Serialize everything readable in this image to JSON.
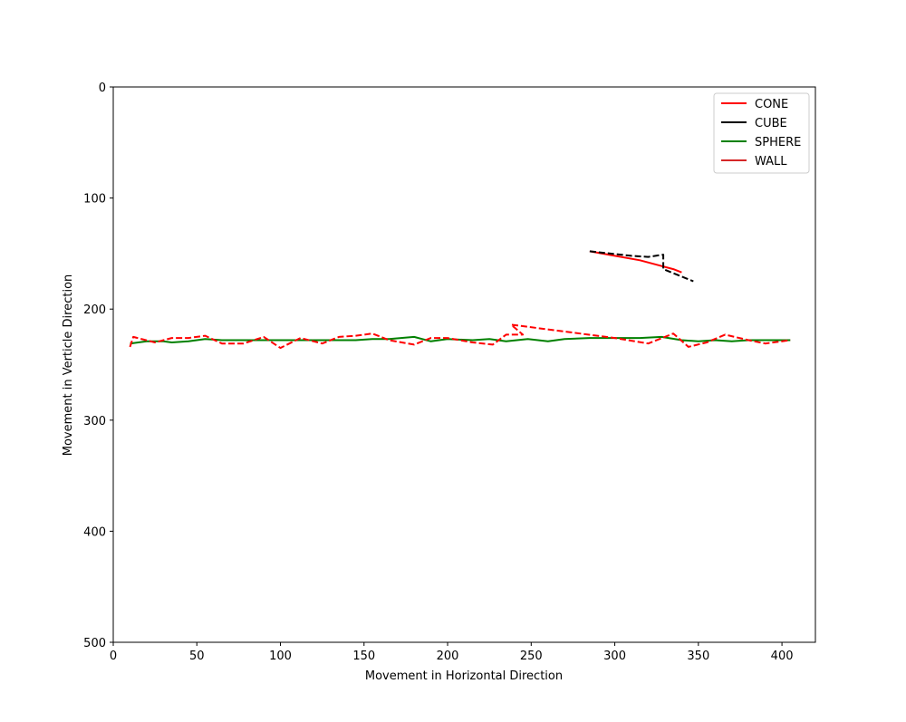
{
  "chart_data": {
    "type": "line",
    "xlabel": "Movement in Horizontal Direction",
    "ylabel": "Movement in Verticle Direction",
    "xlim": [
      0,
      420
    ],
    "ylim": [
      500,
      0
    ],
    "y_inverted": true,
    "xticks": [
      0,
      50,
      100,
      150,
      200,
      250,
      300,
      350,
      400
    ],
    "yticks": [
      0,
      100,
      200,
      300,
      400,
      500
    ],
    "legend_placement": "top-right",
    "grid": false,
    "legend": [
      {
        "name": "CONE",
        "color": "#ff0000"
      },
      {
        "name": "CUBE",
        "color": "#000000"
      },
      {
        "name": "SPHERE",
        "color": "#008000"
      },
      {
        "name": "WALL",
        "color": "#d62728"
      }
    ],
    "series": [
      {
        "name": "SPHERE",
        "color": "#008000",
        "dash": "solid",
        "x": [
          10,
          20,
          30,
          35,
          45,
          55,
          65,
          78,
          90,
          100,
          112,
          125,
          135,
          145,
          155,
          165,
          180,
          190,
          200,
          215,
          225,
          235,
          248,
          260,
          270,
          285,
          300,
          315,
          328,
          340,
          350,
          360,
          370,
          380,
          390,
          405
        ],
        "y": [
          231,
          229,
          229,
          230,
          229,
          227,
          228,
          228,
          228,
          228,
          228,
          228,
          228,
          228,
          227,
          227,
          225,
          229,
          227,
          228,
          227,
          229,
          227,
          229,
          227,
          226,
          226,
          226,
          225,
          228,
          229,
          228,
          229,
          228,
          228,
          228
        ]
      },
      {
        "name": "CONE",
        "color": "#ff0000",
        "dash": "dashed",
        "x": [
          10,
          12,
          25,
          35,
          45,
          55,
          65,
          78,
          90,
          100,
          112,
          125,
          135,
          145,
          155,
          165,
          180,
          190,
          200,
          215,
          227,
          235,
          245,
          238,
          300,
          320,
          335,
          344,
          355,
          366,
          380,
          390,
          405
        ],
        "y": [
          234,
          225,
          230,
          226,
          226,
          224,
          231,
          231,
          225,
          235,
          226,
          231,
          225,
          224,
          222,
          228,
          232,
          226,
          226,
          230,
          232,
          223,
          223,
          214,
          226,
          231,
          222,
          234,
          230,
          223,
          228,
          231,
          228
        ]
      },
      {
        "name": "CONE",
        "color": "#ff0000",
        "dash": "solid",
        "x": [
          285,
          300,
          315,
          325,
          335,
          340
        ],
        "y": [
          148,
          152,
          156,
          160,
          164,
          167
        ]
      },
      {
        "name": "CUBE",
        "color": "#000000",
        "dash": "dashed",
        "x": [
          285,
          310,
          320,
          329,
          329,
          347
        ],
        "y": [
          148,
          152,
          153,
          151,
          164,
          175
        ]
      }
    ]
  }
}
